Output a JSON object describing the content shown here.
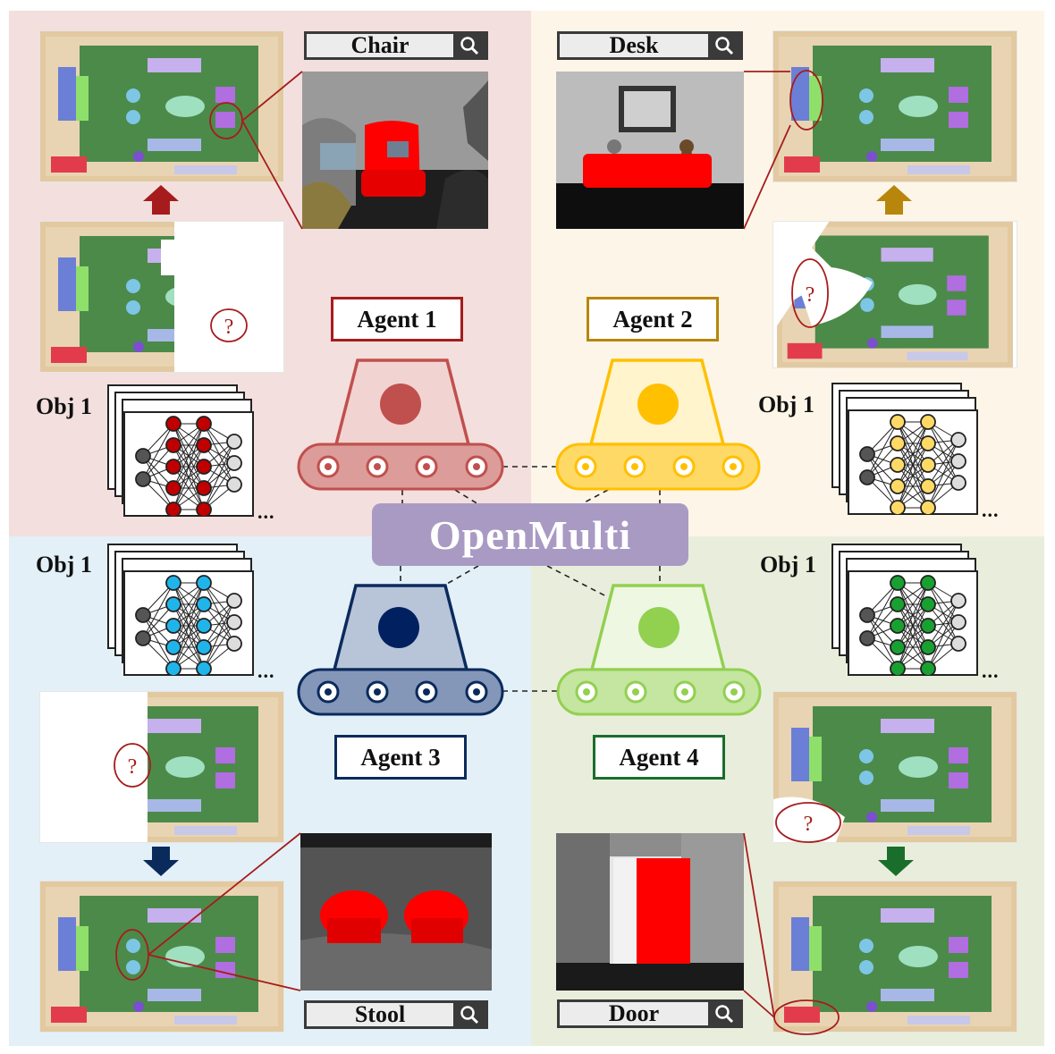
{
  "center_label": "OpenMulti",
  "colors": {
    "agent1": "#c0504d",
    "agent2": "#ffc000",
    "agent3": "#002060",
    "agent4": "#92d050",
    "agent1_dark": "#a61c1c",
    "agent2_dark": "#b8860b",
    "agent3_dark": "#0b2a5c",
    "agent4_dark": "#1a6e2b",
    "highlight": "#ff0000",
    "question": "#a61c1c"
  },
  "agents": [
    {
      "id": "agent1",
      "label": "Agent 1",
      "object_label": "Obj 1",
      "ellipsis": "...",
      "search_term": "Chair",
      "icon": "robot-icon"
    },
    {
      "id": "agent2",
      "label": "Agent 2",
      "object_label": "Obj 1",
      "ellipsis": "...",
      "search_term": "Desk",
      "icon": "robot-icon"
    },
    {
      "id": "agent3",
      "label": "Agent 3",
      "object_label": "Obj 1",
      "ellipsis": "...",
      "search_term": "Stool",
      "icon": "robot-icon"
    },
    {
      "id": "agent4",
      "label": "Agent 4",
      "object_label": "Obj 1",
      "ellipsis": "...",
      "search_term": "Door",
      "icon": "robot-icon"
    }
  ],
  "question_mark": "?",
  "icons": [
    "search-icon",
    "neural-network-icon",
    "arrow-icon",
    "question-icon"
  ]
}
